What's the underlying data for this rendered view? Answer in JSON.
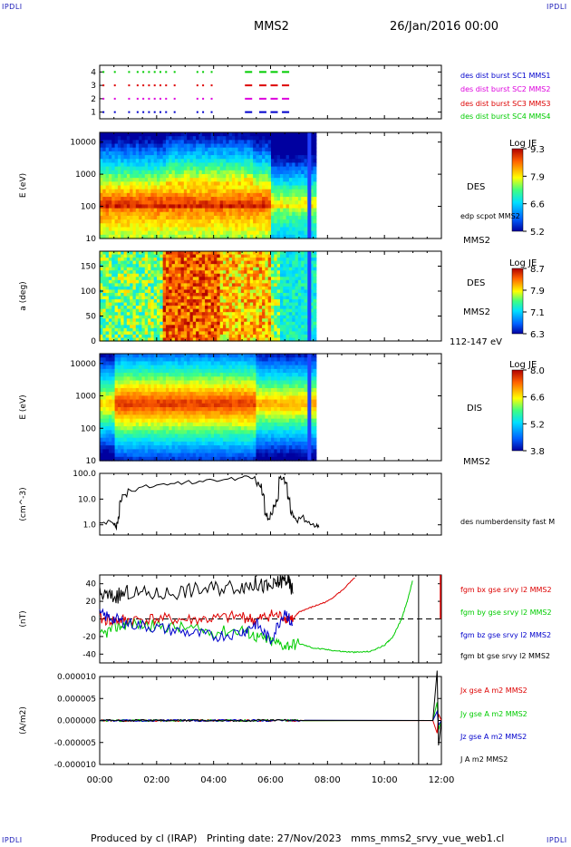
{
  "header": {
    "corner_logo": "IPDLI",
    "mission": "MMS2",
    "date": "26/Jan/2016 00:00"
  },
  "footer": {
    "credit": "Produced by cl (IRAP)   Printing date: 27/Nov/2023   mms_mms2_srvy_vue_web1.cl"
  },
  "colors": {
    "blue": "#0000cc",
    "magenta": "#dd00dd",
    "red": "#dd0000",
    "green": "#00cc00",
    "black": "#000000"
  },
  "time_axis": {
    "ticks": [
      "00:00",
      "02:00",
      "04:00",
      "06:00",
      "08:00",
      "10:00",
      "12:00"
    ],
    "range_hours": [
      0,
      12
    ]
  },
  "chart_data": [
    {
      "type": "scatter",
      "panel": "burst",
      "ylim": [
        0.5,
        4.5
      ],
      "yticks": [
        "4",
        "3",
        "2",
        "1"
      ],
      "legend": [
        {
          "label": "des dist burst SC1 MMS1",
          "color": "#0000cc",
          "row": 1
        },
        {
          "label": "des dist burst SC2 MMS2",
          "color": "#dd00dd",
          "row": 2
        },
        {
          "label": "des dist burst SC3 MMS3",
          "color": "#dd0000",
          "row": 3
        },
        {
          "label": "des dist burst SC4 MMS4",
          "color": "#00cc00",
          "row": 4
        }
      ],
      "burst_times_hours": [
        0.1,
        0.5,
        1.0,
        1.3,
        1.5,
        1.7,
        1.9,
        2.1,
        2.3,
        2.6,
        3.4,
        3.6,
        3.9,
        5.1,
        5.6,
        6.0,
        6.4
      ]
    },
    {
      "type": "heatmap",
      "panel": "des-energy",
      "ylabel": "E (eV)",
      "yscale": "log",
      "ylim": [
        10,
        20000
      ],
      "yticks": [
        "10000",
        "1000",
        "100",
        "10"
      ],
      "colorbar": {
        "title": "Log JE",
        "ticks": [
          "9.3",
          "7.9",
          "6.6",
          "5.2"
        ],
        "min": 5.2,
        "max": 9.3
      },
      "right_labels": [
        "DES",
        "edp scpot MMS2",
        "MMS2"
      ]
    },
    {
      "type": "heatmap",
      "panel": "des-pitch",
      "ylabel": "a (deg)",
      "ylim": [
        0,
        180
      ],
      "yticks": [
        "150",
        "100",
        "50",
        "0"
      ],
      "colorbar": {
        "title": "Log JE",
        "ticks": [
          "8.7",
          "7.9",
          "7.1",
          "6.3"
        ],
        "min": 6.3,
        "max": 8.7
      },
      "right_labels": [
        "DES",
        "MMS2",
        "112-147 eV"
      ]
    },
    {
      "type": "heatmap",
      "panel": "dis-energy",
      "ylabel": "E (eV)",
      "yscale": "log",
      "ylim": [
        10,
        20000
      ],
      "yticks": [
        "10000",
        "1000",
        "100",
        "10"
      ],
      "colorbar": {
        "title": "Log JE",
        "ticks": [
          "8.0",
          "6.6",
          "5.2",
          "3.8"
        ],
        "min": 3.8,
        "max": 8.0
      },
      "right_labels": [
        "DIS",
        "MMS2"
      ]
    },
    {
      "type": "line",
      "panel": "density",
      "ylabel": "(cm^-3)",
      "yscale": "log",
      "ylim": [
        0.4,
        100
      ],
      "yticks": [
        "100.0",
        "10.0",
        "1.0"
      ],
      "series": [
        {
          "name": "des numberdensity fast M",
          "color": "#000000",
          "x": [
            0.0,
            0.3,
            0.5,
            0.55,
            0.6,
            0.65,
            0.7,
            0.8,
            1.0,
            1.5,
            2.0,
            2.5,
            3.0,
            3.5,
            4.0,
            4.5,
            5.0,
            5.3,
            5.5,
            5.6,
            5.7,
            5.8,
            5.9,
            6.0,
            6.1,
            6.2,
            6.3,
            6.4,
            6.5,
            6.6,
            6.7,
            6.8,
            6.9,
            7.0,
            7.2,
            7.4,
            7.6,
            7.7
          ],
          "y": [
            1.2,
            1.5,
            1.0,
            0.8,
            1.2,
            2.0,
            8.0,
            15,
            25,
            30,
            35,
            40,
            45,
            50,
            55,
            60,
            70,
            65,
            40,
            35,
            15,
            2.5,
            1.5,
            3.0,
            6.0,
            10,
            70,
            60,
            40,
            10,
            3.0,
            2.0,
            1.5,
            2.0,
            1.3,
            1.0,
            0.9,
            0.8
          ]
        }
      ]
    },
    {
      "type": "line",
      "panel": "fgm",
      "ylabel": "(nT)",
      "ylim": [
        -50,
        50
      ],
      "yticks": [
        "40",
        "20",
        "0",
        "-20",
        "-40"
      ],
      "series": [
        {
          "name": "fgm bx gse srvy l2 MMS2",
          "color": "#dd0000",
          "x": [
            0,
            0.5,
            1,
            2,
            3,
            4,
            5,
            5.5,
            6,
            6.5,
            6.8,
            7,
            7.5,
            8,
            8.5,
            9
          ],
          "y": [
            0,
            -2,
            -1,
            0,
            -1,
            0,
            3,
            -2,
            5,
            2,
            0,
            8,
            14,
            20,
            32,
            48
          ]
        },
        {
          "name": "fgm by gse srvy l2 MMS2",
          "color": "#00cc00",
          "x": [
            0,
            0.5,
            1,
            2,
            3,
            4,
            5,
            5.5,
            6,
            6.5,
            7,
            7.5,
            8,
            8.5,
            9,
            9.5,
            10,
            10.3,
            10.6,
            10.8,
            11.0
          ],
          "y": [
            -20,
            -10,
            -5,
            -8,
            -10,
            -15,
            -12,
            -20,
            -25,
            -30,
            -28,
            -33,
            -35,
            -37,
            -38,
            -37,
            -30,
            -20,
            0,
            20,
            45
          ]
        },
        {
          "name": "fgm bz gse srvy l2 MMS2",
          "color": "#0000cc",
          "x": [
            0,
            0.5,
            1,
            2,
            3,
            4,
            5,
            5.5,
            6,
            6.5,
            6.8
          ],
          "y": [
            5,
            0,
            -5,
            -10,
            -15,
            -20,
            -15,
            -5,
            -25,
            10,
            -10
          ]
        },
        {
          "name": "fgm bt gse srvy l2 MMS2",
          "color": "#000000",
          "x": [
            0,
            0.5,
            1,
            2,
            3,
            4,
            5,
            5.5,
            6,
            6.3,
            6.6,
            6.8
          ],
          "y": [
            28,
            25,
            30,
            28,
            32,
            35,
            38,
            40,
            35,
            42,
            45,
            30
          ]
        }
      ]
    },
    {
      "type": "line",
      "panel": "current",
      "ylabel": "(A/m2)",
      "ylim": [
        -1e-05,
        1e-05
      ],
      "yticks": [
        "0.000010",
        "0.000005",
        "0.000000",
        "-0.000005",
        "-0.000010"
      ],
      "series": [
        {
          "name": "Jx gse A m2 MMS2",
          "color": "#dd0000"
        },
        {
          "name": "Jy gse A m2 MMS2",
          "color": "#00cc00"
        },
        {
          "name": "Jz gse A m2 MMS2",
          "color": "#0000cc"
        },
        {
          "name": "J A m2 MMS2",
          "color": "#000000"
        }
      ]
    }
  ]
}
